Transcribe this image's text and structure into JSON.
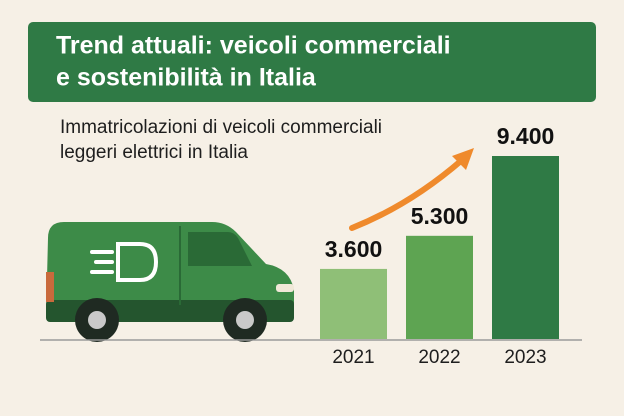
{
  "chart_data": {
    "type": "bar",
    "title": [
      "Trend attuali: veicoli commerciali",
      "e sostenibilità in Italia"
    ],
    "subtitle": [
      "Immatricolazioni di veicoli commerciali",
      "leggeri elettrici in Italia"
    ],
    "categories": [
      "2021",
      "2022",
      "2023"
    ],
    "values": [
      3600,
      5300,
      9400
    ],
    "value_labels": [
      "3.600",
      "5.300",
      "9.400"
    ],
    "colors": [
      "#8fbf77",
      "#5ea452",
      "#2f7a45"
    ]
  }
}
